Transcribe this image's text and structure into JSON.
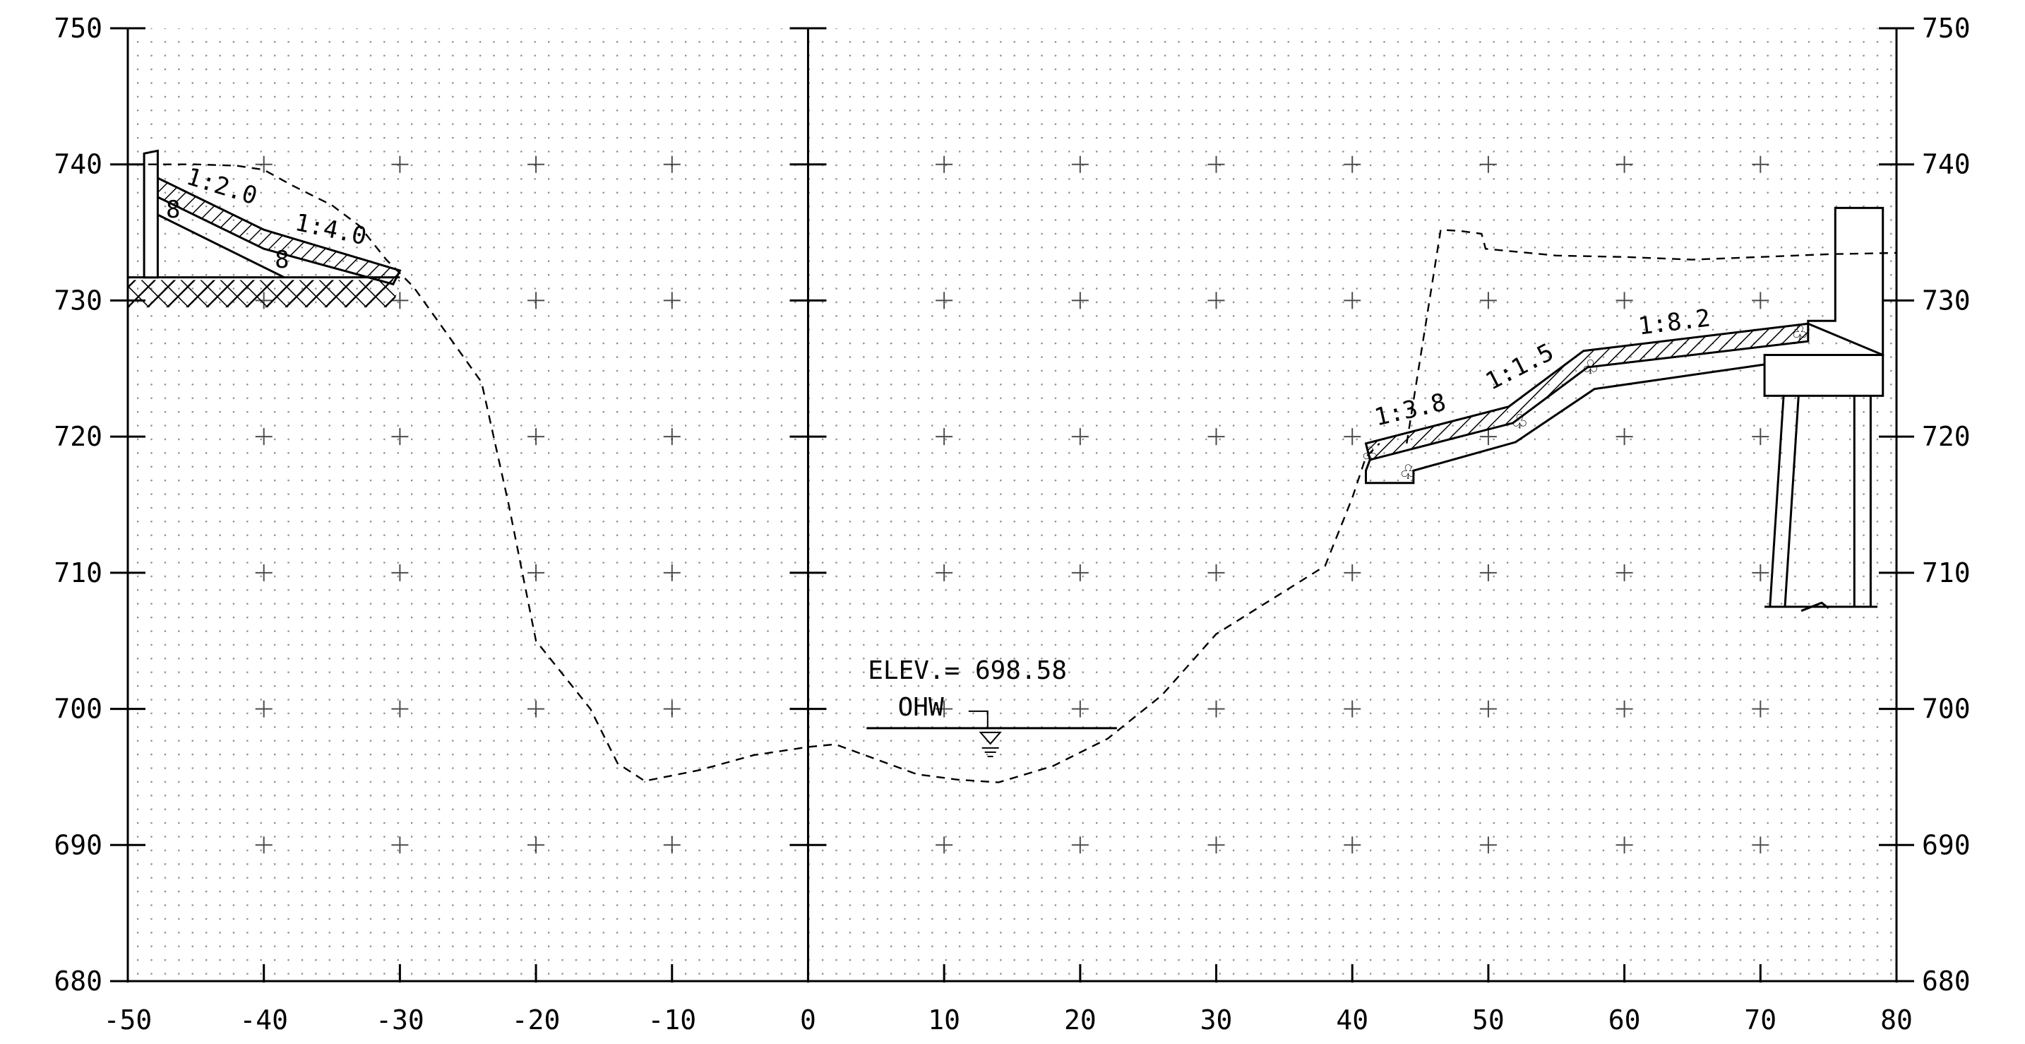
{
  "chart_data": {
    "type": "line",
    "title": "",
    "xlabel": "",
    "ylabel": "",
    "xlim": [
      -50,
      80
    ],
    "ylim": [
      680,
      750
    ],
    "x_ticks": [
      "-50",
      "-40",
      "-30",
      "-20",
      "-10",
      "0",
      "10",
      "20",
      "30",
      "40",
      "50",
      "60",
      "70",
      "80"
    ],
    "y_ticks": [
      "680",
      "690",
      "700",
      "710",
      "720",
      "730",
      "740",
      "750"
    ],
    "grid": "dotted minor grid with + marks at 10-unit intersections",
    "series": [
      {
        "style": "dashed",
        "x": [
          -48.5,
          -45,
          -42,
          -40,
          -38,
          -35,
          -33,
          -31,
          -29,
          -24,
          -22,
          -20,
          -16,
          -14,
          -12,
          -8,
          -4,
          0,
          2,
          5,
          8,
          11,
          14,
          18,
          22,
          26,
          30,
          34,
          38,
          40,
          41,
          42
        ],
        "y": [
          740,
          740,
          739.9,
          739.6,
          738.5,
          737,
          735.5,
          733,
          731,
          724,
          715,
          705,
          700,
          696,
          694.7,
          695.5,
          696.6,
          697.2,
          697.4,
          696.3,
          695.2,
          694.8,
          694.6,
          695.8,
          697.8,
          701,
          705.5,
          708,
          710.5,
          715.5,
          718.5,
          719.5
        ]
      },
      {
        "style": "dashed",
        "x": [
          44,
          46.5,
          48,
          49.5,
          49.8,
          55,
          60,
          65,
          70,
          75,
          80
        ],
        "y": [
          719.5,
          735.2,
          735.1,
          734.9,
          733.8,
          733.3,
          733.2,
          733.0,
          733.2,
          733.4,
          733.5
        ]
      }
    ],
    "annotations": {
      "left_slope_1": "1:2.0",
      "left_slope_2": "1:4.0",
      "right_slope_1": "1:3.8",
      "right_slope_2": "1:1.5",
      "right_slope_3": "1:8.2",
      "elevation": "ELEV.= 698.58",
      "water_level": "OHW",
      "ohw_elevation": 698.58
    }
  }
}
